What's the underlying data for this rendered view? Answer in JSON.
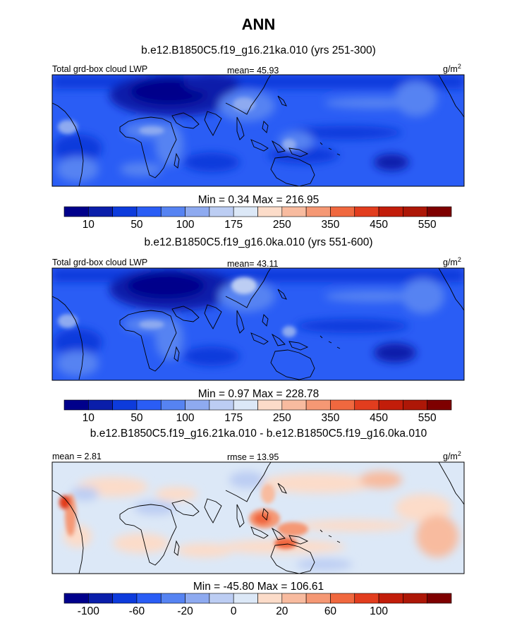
{
  "figure": {
    "title": "ANN",
    "units": "g/m",
    "units_sup": "2"
  },
  "panels": [
    {
      "case": "b.e12.B1850C5.f19_g16.21ka.010 (yrs 251-300)",
      "left_label": "Total grd-box cloud LWP",
      "center_prefix": "mean=",
      "center_value": "45.93",
      "minmax": "Min =   0.34 Max = 216.95",
      "tone": "abs1"
    },
    {
      "case": "b.e12.B1850C5.f19_g16.0ka.010 (yrs 551-600)",
      "left_label": "Total grd-box cloud LWP",
      "center_prefix": "mean=",
      "center_value": "43.11",
      "minmax": "Min =   0.97 Max = 228.78",
      "tone": "abs2"
    },
    {
      "case": "b.e12.B1850C5.f19_g16.21ka.010 - b.e12.B1850C5.f19_g16.0ka.010",
      "left_label": "mean =   2.81",
      "center_prefix": "rmse =",
      "center_value": "13.95",
      "minmax": "Min = -45.80 Max = 106.61",
      "tone": "diff"
    }
  ],
  "colorbars": [
    {
      "colors": [
        "#00008b",
        "#0a1eaa",
        "#0d3bdc",
        "#2a5df5",
        "#5683f2",
        "#8eaaf0",
        "#bccdf3",
        "#dce8f7",
        "#fcdcc9",
        "#f8bb9f",
        "#f59874",
        "#f0683f",
        "#e23d1e",
        "#c21d0a",
        "#ad1707",
        "#7e0000"
      ],
      "labels": [
        {
          "after": 1,
          "text": "10"
        },
        {
          "after": 3,
          "text": "50"
        },
        {
          "after": 5,
          "text": "100"
        },
        {
          "after": 7,
          "text": "175"
        },
        {
          "after": 9,
          "text": "250"
        },
        {
          "after": 11,
          "text": "350"
        },
        {
          "after": 13,
          "text": "450"
        },
        {
          "after": 15,
          "text": "550"
        }
      ]
    },
    {
      "colors": [
        "#00008b",
        "#0a1eaa",
        "#0d3bdc",
        "#2a5df5",
        "#5683f2",
        "#8eaaf0",
        "#bccdf3",
        "#dce8f7",
        "#fcdcc9",
        "#f8bb9f",
        "#f59874",
        "#f0683f",
        "#e23d1e",
        "#c21d0a",
        "#ad1707",
        "#7e0000"
      ],
      "labels": [
        {
          "after": 1,
          "text": "10"
        },
        {
          "after": 3,
          "text": "50"
        },
        {
          "after": 5,
          "text": "100"
        },
        {
          "after": 7,
          "text": "175"
        },
        {
          "after": 9,
          "text": "250"
        },
        {
          "after": 11,
          "text": "350"
        },
        {
          "after": 13,
          "text": "450"
        },
        {
          "after": 15,
          "text": "550"
        }
      ]
    },
    {
      "colors": [
        "#00008b",
        "#0a1eaa",
        "#0d3bdc",
        "#2a5df5",
        "#5683f2",
        "#8eaaf0",
        "#bccdf3",
        "#dce8f7",
        "#fcdcc9",
        "#f8bb9f",
        "#f59874",
        "#f0683f",
        "#e23d1e",
        "#c21d0a",
        "#ad1707",
        "#7e0000"
      ],
      "labels": [
        {
          "after": 1,
          "text": "-100"
        },
        {
          "after": 3,
          "text": "-60"
        },
        {
          "after": 5,
          "text": "-20"
        },
        {
          "after": 7,
          "text": "0"
        },
        {
          "after": 9,
          "text": "20"
        },
        {
          "after": 11,
          "text": "60"
        },
        {
          "after": 13,
          "text": "100"
        }
      ]
    }
  ],
  "chart_data": {
    "type": "heatmap",
    "title": "ANN",
    "variable": "Total grd-box cloud LWP",
    "units": "g/m2",
    "panels": [
      {
        "label": "b.e12.B1850C5.f19_g16.21ka.010 (yrs 251-300)",
        "mean": 45.93,
        "min": 0.34,
        "max": 216.95
      },
      {
        "label": "b.e12.B1850C5.f19_g16.0ka.010 (yrs 551-600)",
        "mean": 43.11,
        "min": 0.97,
        "max": 228.78
      },
      {
        "label": "b.e12.B1850C5.f19_g16.21ka.010 - b.e12.B1850C5.f19_g16.0ka.010",
        "mean": 2.81,
        "rmse": 13.95,
        "min": -45.8,
        "max": 106.61
      }
    ],
    "colorbar_levels_abs": [
      10,
      50,
      100,
      175,
      250,
      350,
      450,
      550
    ],
    "colorbar_levels_diff": [
      -100,
      -60,
      -20,
      0,
      20,
      60,
      100
    ]
  }
}
